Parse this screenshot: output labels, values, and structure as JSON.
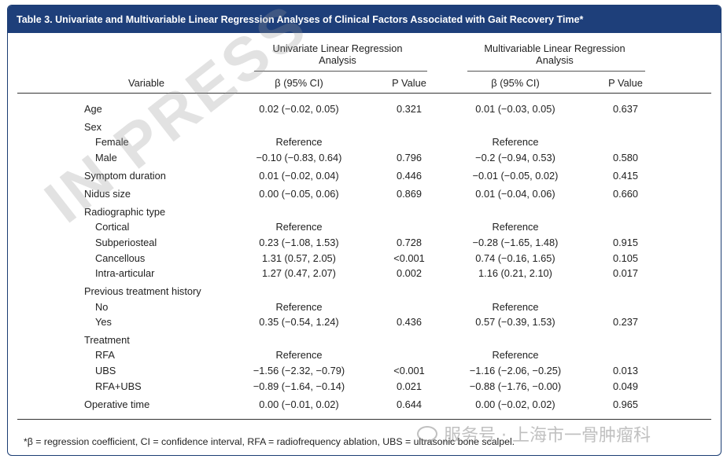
{
  "title": "Table 3.  Univariate and Multivariable Linear Regression Analyses of Clinical Factors Associated with Gait Recovery Time*",
  "header": {
    "variable": "Variable",
    "group1_line1": "Univariate Linear Regression",
    "group1_line2": "Analysis",
    "group2_line1": "Multivariable Linear Regression",
    "group2_line2": "Analysis",
    "beta_ci": "β (95% CI)",
    "p_value": "P Value"
  },
  "rows": [
    {
      "label": "Age",
      "indent": false,
      "uni_beta": "0.02 (−0.02, 0.05)",
      "uni_p": "0.321",
      "multi_beta": "0.01 (−0.03, 0.05)",
      "multi_p": "0.637"
    },
    {
      "label": "Sex",
      "indent": false,
      "uni_beta": "",
      "uni_p": "",
      "multi_beta": "",
      "multi_p": ""
    },
    {
      "label": "Female",
      "indent": true,
      "uni_beta": "Reference",
      "uni_p": "",
      "multi_beta": "Reference",
      "multi_p": ""
    },
    {
      "label": "Male",
      "indent": true,
      "uni_beta": "−0.10 (−0.83, 0.64)",
      "uni_p": "0.796",
      "multi_beta": "−0.2 (−0.94, 0.53)",
      "multi_p": "0.580"
    },
    {
      "label": "Symptom duration",
      "indent": false,
      "uni_beta": "0.01 (−0.02, 0.04)",
      "uni_p": "0.446",
      "multi_beta": "−0.01 (−0.05, 0.02)",
      "multi_p": "0.415"
    },
    {
      "label": "Nidus size",
      "indent": false,
      "uni_beta": "0.00 (−0.05, 0.06)",
      "uni_p": "0.869",
      "multi_beta": "0.01 (−0.04, 0.06)",
      "multi_p": "0.660"
    },
    {
      "label": "Radiographic type",
      "indent": false,
      "uni_beta": "",
      "uni_p": "",
      "multi_beta": "",
      "multi_p": ""
    },
    {
      "label": "Cortical",
      "indent": true,
      "uni_beta": "Reference",
      "uni_p": "",
      "multi_beta": "Reference",
      "multi_p": ""
    },
    {
      "label": "Subperiosteal",
      "indent": true,
      "uni_beta": "0.23 (−1.08, 1.53)",
      "uni_p": "0.728",
      "multi_beta": "−0.28 (−1.65, 1.48)",
      "multi_p": "0.915"
    },
    {
      "label": "Cancellous",
      "indent": true,
      "uni_beta": "1.31 (0.57, 2.05)",
      "uni_p": "<0.001",
      "multi_beta": "0.74 (−0.16, 1.65)",
      "multi_p": "0.105"
    },
    {
      "label": "Intra-articular",
      "indent": true,
      "uni_beta": "1.27 (0.47, 2.07)",
      "uni_p": "0.002",
      "multi_beta": "1.16 (0.21, 2.10)",
      "multi_p": "0.017"
    },
    {
      "label": "Previous treatment history",
      "indent": false,
      "uni_beta": "",
      "uni_p": "",
      "multi_beta": "",
      "multi_p": ""
    },
    {
      "label": "No",
      "indent": true,
      "uni_beta": "Reference",
      "uni_p": "",
      "multi_beta": "Reference",
      "multi_p": ""
    },
    {
      "label": "Yes",
      "indent": true,
      "uni_beta": "0.35 (−0.54, 1.24)",
      "uni_p": "0.436",
      "multi_beta": "0.57 (−0.39, 1.53)",
      "multi_p": "0.237"
    },
    {
      "label": "Treatment",
      "indent": false,
      "uni_beta": "",
      "uni_p": "",
      "multi_beta": "",
      "multi_p": ""
    },
    {
      "label": "RFA",
      "indent": true,
      "uni_beta": "Reference",
      "uni_p": "",
      "multi_beta": "Reference",
      "multi_p": ""
    },
    {
      "label": "UBS",
      "indent": true,
      "uni_beta": "−1.56 (−2.32, −0.79)",
      "uni_p": "<0.001",
      "multi_beta": "−1.16 (−2.06, −0.25)",
      "multi_p": "0.013"
    },
    {
      "label": "RFA+UBS",
      "indent": true,
      "uni_beta": "−0.89 (−1.64, −0.14)",
      "uni_p": "0.021",
      "multi_beta": "−0.88 (−1.76, −0.00)",
      "multi_p": "0.049"
    },
    {
      "label": "Operative time",
      "indent": false,
      "uni_beta": "0.00 (−0.01, 0.02)",
      "uni_p": "0.644",
      "multi_beta": "0.00 (−0.02, 0.02)",
      "multi_p": "0.965"
    }
  ],
  "footnote": "*β = regression coefficient, CI = confidence interval, RFA = radiofrequency ablation, UBS = ultrasonic bone scalpel.",
  "watermark": "IN PRESS",
  "brand_watermark": "服务号 · 上海市一骨肿瘤科",
  "colors": {
    "title_bar": "#1e3f7a",
    "border": "#1b3d73"
  }
}
